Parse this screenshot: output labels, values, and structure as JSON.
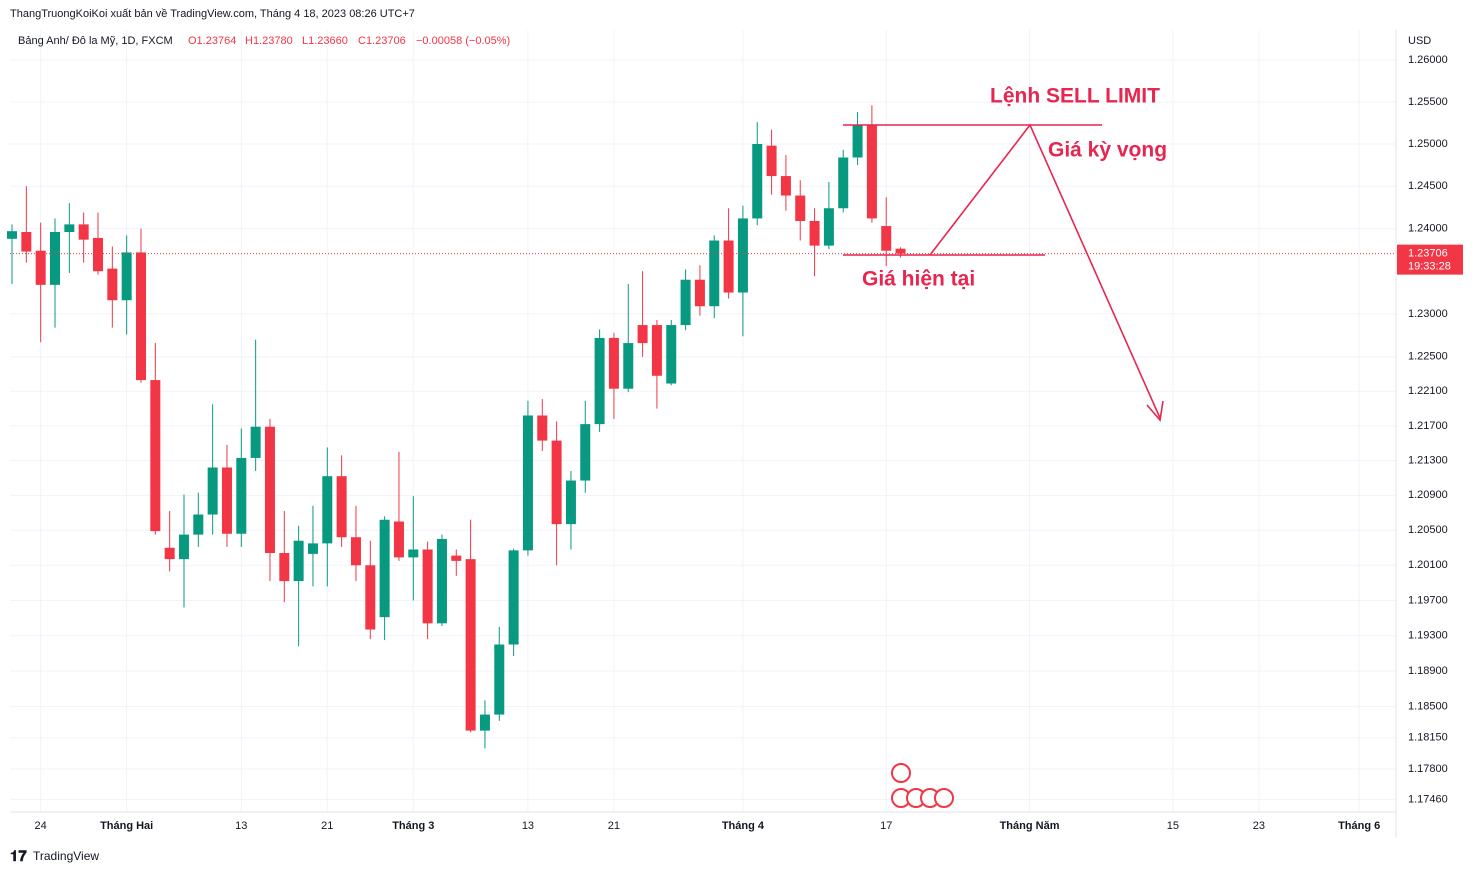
{
  "header": {
    "publisher": "ThangTruongKoiKoi xuất bản về TradingView.com, Tháng 4 18, 2023 08:26 UTC+7",
    "symbol": "Bảng Anh/ Đô la Mỹ, 1D, FXCM",
    "ohlc": [
      "O1.23764",
      "H1.23780",
      "L1.23660",
      "C1.23706"
    ],
    "change": "−0.00058 (−0.05%)",
    "currency": "USD",
    "brand": "TradingView"
  },
  "chart_data": {
    "type": "candlestick",
    "log_scale": true,
    "grid": true,
    "up_color": "#089981",
    "down_color": "#f23645",
    "x": [
      0,
      1,
      2,
      3,
      4,
      5,
      6,
      7,
      8,
      9,
      10,
      11,
      12,
      13,
      14,
      15,
      16,
      17,
      18,
      19,
      20,
      21,
      22,
      23,
      24,
      25,
      26,
      27,
      28,
      29,
      30,
      31,
      32,
      33,
      34,
      35,
      36,
      37,
      38,
      39,
      40,
      41,
      42,
      43,
      44,
      45,
      46,
      47,
      48,
      49,
      50,
      51,
      52,
      53,
      54,
      55,
      56,
      57,
      58,
      59,
      60,
      61,
      62
    ],
    "open": [
      1.2388,
      1.2396,
      1.2374,
      1.2334,
      1.2396,
      1.2405,
      1.2389,
      1.2353,
      1.2316,
      1.2372,
      1.2223,
      1.203,
      1.2017,
      1.2045,
      1.2068,
      1.2122,
      1.2046,
      1.2133,
      1.2169,
      1.2024,
      1.1992,
      1.2023,
      1.2035,
      1.2112,
      1.2042,
      1.201,
      1.1951,
      1.206,
      1.2019,
      1.2028,
      1.1944,
      1.2021,
      1.2017,
      1.1823,
      1.1841,
      1.192,
      1.2027,
      1.2182,
      1.2153,
      1.2057,
      1.2107,
      1.2172,
      1.2272,
      1.2213,
      1.2287,
      1.2287,
      1.2219,
      1.2287,
      1.234,
      1.2309,
      1.2386,
      1.2325,
      1.2412,
      1.2498,
      1.2462,
      1.2439,
      1.2409,
      1.238,
      1.2424,
      1.2484,
      1.2523,
      1.2403,
      1.23764
    ],
    "high": [
      1.2405,
      1.245,
      1.2407,
      1.2412,
      1.243,
      1.2419,
      1.2419,
      1.2379,
      1.2392,
      1.24,
      1.2266,
      1.2072,
      1.2091,
      1.2093,
      1.2195,
      1.2148,
      1.2167,
      1.227,
      1.2178,
      1.2072,
      1.2055,
      1.2078,
      1.2145,
      1.2136,
      1.2078,
      1.2038,
      1.2066,
      1.214,
      1.2089,
      1.2037,
      1.2045,
      1.2028,
      1.2062,
      1.1857,
      1.194,
      1.2029,
      1.2199,
      1.2201,
      1.2175,
      1.2118,
      1.2199,
      1.2282,
      1.2278,
      1.2335,
      1.235,
      1.2293,
      1.2293,
      1.2352,
      1.2357,
      1.2392,
      1.2424,
      1.2427,
      1.2526,
      1.2517,
      1.2487,
      1.2457,
      1.2424,
      1.2455,
      1.2493,
      1.2538,
      1.2546,
      1.2437,
      1.2378
    ],
    "low": [
      1.2335,
      1.236,
      1.2267,
      1.2284,
      1.2348,
      1.236,
      1.2346,
      1.2284,
      1.2276,
      1.222,
      1.2045,
      1.2003,
      1.1962,
      1.2031,
      1.2045,
      1.2031,
      1.2031,
      1.2118,
      1.1992,
      1.1968,
      1.1918,
      1.1986,
      1.1986,
      1.2031,
      1.1992,
      1.1926,
      1.1925,
      1.2015,
      1.197,
      1.1926,
      1.1941,
      1.1998,
      1.1821,
      1.1803,
      1.1834,
      1.1907,
      1.2021,
      1.2141,
      1.201,
      1.2028,
      1.2093,
      1.2163,
      1.2178,
      1.2209,
      1.225,
      1.219,
      1.2217,
      1.2281,
      1.2298,
      1.2295,
      1.2318,
      1.2274,
      1.2404,
      1.244,
      1.2421,
      1.2386,
      1.2344,
      1.2376,
      1.2419,
      1.2475,
      1.2407,
      1.2356,
      1.2366
    ],
    "close": [
      1.2397,
      1.2373,
      1.2334,
      1.2396,
      1.2405,
      1.2387,
      1.235,
      1.2316,
      1.2372,
      1.2223,
      1.2049,
      1.2017,
      1.2045,
      1.2068,
      1.2122,
      1.2046,
      1.2133,
      1.2169,
      1.2024,
      1.1992,
      1.2038,
      1.2035,
      1.2112,
      1.2042,
      1.201,
      1.1937,
      1.2062,
      1.2019,
      1.2028,
      1.1944,
      1.204,
      1.2015,
      1.1823,
      1.1841,
      1.192,
      1.2027,
      1.2182,
      1.2153,
      1.2057,
      1.2107,
      1.2172,
      1.2272,
      1.2213,
      1.2266,
      1.2266,
      1.2228,
      1.2287,
      1.234,
      1.2309,
      1.2386,
      1.2325,
      1.2412,
      1.25,
      1.2462,
      1.2439,
      1.2409,
      1.238,
      1.2424,
      1.2484,
      1.2523,
      1.2412,
      1.2374,
      1.23706
    ],
    "xlim": [
      -0.14,
      96.5
    ],
    "xticks": [
      {
        "value": 2,
        "label": "24"
      },
      {
        "value": 8,
        "label": "Tháng Hai"
      },
      {
        "value": 16,
        "label": "13"
      },
      {
        "value": 22,
        "label": "21"
      },
      {
        "value": 28,
        "label": "Tháng 3"
      },
      {
        "value": 36,
        "label": "13"
      },
      {
        "value": 42,
        "label": "21"
      },
      {
        "value": 51,
        "label": "Tháng 4"
      },
      {
        "value": 61,
        "label": "17"
      },
      {
        "value": 71,
        "label": "Tháng Năm"
      },
      {
        "value": 81,
        "label": "15"
      },
      {
        "value": 87,
        "label": "23"
      },
      {
        "value": 94,
        "label": "Tháng 6"
      }
    ],
    "ylim": [
      1.1732,
      1.2636
    ],
    "yticks": [
      {
        "value": 1.26,
        "label": "1.26000"
      },
      {
        "value": 1.255,
        "label": "1.25500"
      },
      {
        "value": 1.25,
        "label": "1.25000"
      },
      {
        "value": 1.245,
        "label": "1.24500"
      },
      {
        "value": 1.24,
        "label": "1.24000"
      },
      {
        "value": 1.23,
        "label": "1.23000"
      },
      {
        "value": 1.225,
        "label": "1.22500"
      },
      {
        "value": 1.221,
        "label": "1.22100"
      },
      {
        "value": 1.217,
        "label": "1.21700"
      },
      {
        "value": 1.213,
        "label": "1.21300"
      },
      {
        "value": 1.209,
        "label": "1.20900"
      },
      {
        "value": 1.205,
        "label": "1.20500"
      },
      {
        "value": 1.201,
        "label": "1.20100"
      },
      {
        "value": 1.197,
        "label": "1.19700"
      },
      {
        "value": 1.193,
        "label": "1.19300"
      },
      {
        "value": 1.189,
        "label": "1.18900"
      },
      {
        "value": 1.185,
        "label": "1.18500"
      },
      {
        "value": 1.1815,
        "label": "1.18150"
      },
      {
        "value": 1.178,
        "label": "1.17800"
      },
      {
        "value": 1.1746,
        "label": "1.17460"
      }
    ],
    "last_price": 1.23706,
    "countdown": "19:33:28",
    "annotations": [
      "Lệnh SELL LIMIT",
      "Giá kỳ vọng",
      "Giá hiện tại"
    ]
  }
}
